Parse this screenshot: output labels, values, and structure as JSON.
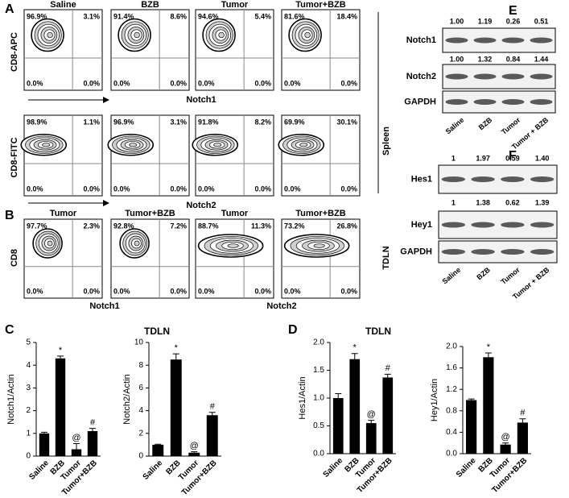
{
  "flow": {
    "panel_a": {
      "label": "A",
      "row_label": "Spleen",
      "columns": [
        "Saline",
        "BZB",
        "Tumor",
        "Tumor+BZB"
      ],
      "rows": [
        {
          "y_label": "CD8-APC",
          "x_label": "Notch1",
          "quadrants": [
            [
              "96.9%",
              "3.1%",
              "0.0%",
              "0.0%"
            ],
            [
              "91.4%",
              "8.6%",
              "0.0%",
              "0.0%"
            ],
            [
              "94.6%",
              "5.4%",
              "0.0%",
              "0.0%"
            ],
            [
              "81.6%",
              "18.4%",
              "0.0%",
              "0.0%"
            ]
          ]
        },
        {
          "y_label": "CD8-FITC",
          "x_label": "Notch2",
          "quadrants": [
            [
              "98.9%",
              "1.1%",
              "0.0%",
              "0.0%"
            ],
            [
              "96.9%",
              "3.1%",
              "0.0%",
              "0.0%"
            ],
            [
              "91.8%",
              "8.2%",
              "0.0%",
              "0.0%"
            ],
            [
              "69.9%",
              "30.1%",
              "0.0%",
              "0.0%"
            ]
          ]
        }
      ]
    },
    "panel_b": {
      "label": "B",
      "row_label": "TDLN",
      "y_label": "CD8",
      "columns": [
        "Tumor",
        "Tumor+BZB",
        "Tumor",
        "Tumor+BZB"
      ],
      "x_labels": [
        "Notch1",
        "Notch2"
      ],
      "quadrants": [
        [
          "97.7%",
          "2.3%",
          "0.0%",
          "0.0%"
        ],
        [
          "92.8%",
          "7.2%",
          "0.0%",
          "0.0%"
        ],
        [
          "88.7%",
          "11.3%",
          "0.0%",
          "0.0%"
        ],
        [
          "73.2%",
          "26.8%",
          "0.0%",
          "0.0%"
        ]
      ]
    }
  },
  "blots": {
    "panel_e": {
      "label": "E",
      "lanes": [
        "Saline",
        "BZB",
        "Tumor",
        "Tumor + BZB"
      ],
      "bands": [
        {
          "name": "Notch1",
          "ratios": [
            "1.00",
            "1.19",
            "0.26",
            "0.51"
          ]
        },
        {
          "name": "Notch2",
          "ratios": [
            "1.00",
            "1.32",
            "0.84",
            "1.44"
          ]
        },
        {
          "name": "GAPDH"
        }
      ]
    },
    "panel_f": {
      "label": "F",
      "lanes": [
        "Saline",
        "BZB",
        "Tumor",
        "Tumor + BZB"
      ],
      "bands": [
        {
          "name": "Hes1",
          "ratios": [
            "1",
            "1.97",
            "0.59",
            "1.40"
          ]
        },
        {
          "name": "Hey1",
          "ratios": [
            "1",
            "1.38",
            "0.62",
            "1.39"
          ]
        },
        {
          "name": "GAPDH"
        }
      ]
    }
  },
  "panel_c": {
    "label": "C",
    "title": "TDLN"
  },
  "panel_d": {
    "label": "D",
    "title": "TDLN"
  },
  "chart_data": [
    {
      "type": "bar",
      "ylabel": "Notch1/Actin",
      "categories": [
        "Saline",
        "BZB",
        "Tumor",
        "Tumor+BZB"
      ],
      "values": [
        1.0,
        4.3,
        0.3,
        1.1
      ],
      "errors": [
        0.05,
        0.1,
        0.25,
        0.12
      ],
      "annotations": [
        null,
        "*",
        "@",
        "#"
      ],
      "ylim": [
        0,
        5
      ],
      "yticks": [
        0,
        1,
        2,
        3,
        4,
        5
      ],
      "color": "#000000"
    },
    {
      "type": "bar",
      "ylabel": "Notch2/Actin",
      "categories": [
        "Saline",
        "BZB",
        "Tumor",
        "Tumor+BZB"
      ],
      "values": [
        1.0,
        8.5,
        0.3,
        3.6
      ],
      "errors": [
        0.05,
        0.5,
        0.08,
        0.25
      ],
      "annotations": [
        null,
        "*",
        "@",
        "#"
      ],
      "ylim": [
        0,
        10
      ],
      "yticks": [
        0,
        2,
        4,
        6,
        8,
        10
      ],
      "color": "#000000"
    },
    {
      "type": "bar",
      "ylabel": "Hes1/Actin",
      "categories": [
        "Saline",
        "BZB",
        "Tumor",
        "Tumor+BZB"
      ],
      "values": [
        1.0,
        1.7,
        0.55,
        1.37
      ],
      "errors": [
        0.08,
        0.1,
        0.05,
        0.06
      ],
      "annotations": [
        null,
        "*",
        "@",
        "#"
      ],
      "ylim": [
        0,
        2
      ],
      "yticks": [
        {
          "value": 0,
          "label": "0.0"
        },
        {
          "value": 0.5,
          "label": "0.5"
        },
        {
          "value": 1,
          "label": "1.0"
        },
        {
          "value": 1.5,
          "label": "1.5"
        },
        {
          "value": 2,
          "label": "2.0"
        }
      ],
      "color": "#000000"
    },
    {
      "type": "bar",
      "ylabel": "Hey1/Actin",
      "categories": [
        "Saline",
        "BZB",
        "Tumor",
        "Tumor+BZB"
      ],
      "values": [
        1.0,
        1.8,
        0.17,
        0.58
      ],
      "errors": [
        0.02,
        0.08,
        0.03,
        0.07
      ],
      "annotations": [
        null,
        "*",
        "@",
        "#"
      ],
      "ylim": [
        0,
        2
      ],
      "yticks": [
        {
          "value": 0,
          "label": "0.0"
        },
        {
          "value": 0.4,
          "label": "0.4"
        },
        {
          "value": 0.8,
          "label": "0.8"
        },
        {
          "value": 1.2,
          "label": "1.2"
        },
        {
          "value": 1.6,
          "label": "1.6"
        },
        {
          "value": 2,
          "label": "2.0"
        }
      ],
      "color": "#000000"
    }
  ]
}
